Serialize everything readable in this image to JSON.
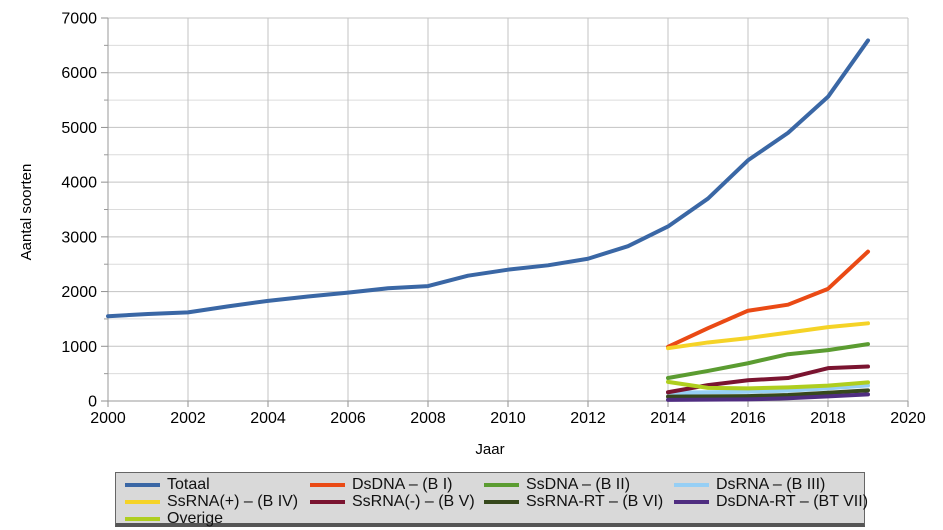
{
  "chart_data": {
    "type": "line",
    "title": "",
    "xlabel": "Jaar",
    "ylabel": "Aantal soorten",
    "xlim": [
      2000,
      2020
    ],
    "ylim": [
      0,
      7000
    ],
    "x_ticks": [
      2000,
      2002,
      2004,
      2006,
      2008,
      2010,
      2012,
      2014,
      2016,
      2018,
      2020
    ],
    "y_ticks": [
      0,
      1000,
      2000,
      3000,
      4000,
      5000,
      6000,
      7000
    ],
    "y_minor_step": 500,
    "grid": "on",
    "legend": {
      "position": "bottom",
      "columns": 4,
      "background": "#d9d9d9"
    },
    "series": [
      {
        "name": "Totaal",
        "color": "#3A67A5",
        "x": [
          2000,
          2001,
          2002,
          2003,
          2004,
          2005,
          2006,
          2007,
          2008,
          2009,
          2010,
          2011,
          2012,
          2013,
          2014,
          2015,
          2016,
          2017,
          2018,
          2019
        ],
        "values": [
          1550,
          1590,
          1620,
          1730,
          1830,
          1910,
          1980,
          2060,
          2100,
          2290,
          2400,
          2480,
          2600,
          2830,
          3190,
          3700,
          4400,
          4900,
          5560,
          6590
        ]
      },
      {
        "name": "DsDNA – (B I)",
        "color": "#EA4A15",
        "x": [
          2014,
          2015,
          2016,
          2017,
          2018,
          2019
        ],
        "values": [
          990,
          1330,
          1650,
          1760,
          2050,
          2730
        ]
      },
      {
        "name": "SsDNA – (B II)",
        "color": "#5B9C31",
        "x": [
          2014,
          2015,
          2016,
          2017,
          2018,
          2019
        ],
        "values": [
          420,
          550,
          690,
          855,
          930,
          1040
        ]
      },
      {
        "name": "DsRNA – (B III)",
        "color": "#96CFF5",
        "x": [
          2014,
          2015,
          2016,
          2017,
          2018,
          2019
        ],
        "values": [
          150,
          160,
          170,
          190,
          230,
          285
        ]
      },
      {
        "name": "SsRNA(+) – (B IV)",
        "color": "#F5D327",
        "x": [
          2014,
          2015,
          2016,
          2017,
          2018,
          2019
        ],
        "values": [
          965,
          1070,
          1150,
          1250,
          1350,
          1420
        ]
      },
      {
        "name": "SsRNA(-) – (B V)",
        "color": "#7A1430",
        "x": [
          2014,
          2015,
          2016,
          2017,
          2018,
          2019
        ],
        "values": [
          160,
          290,
          380,
          420,
          600,
          630
        ]
      },
      {
        "name": "SsRNA-RT – (B VI)",
        "color": "#36481C",
        "x": [
          2014,
          2015,
          2016,
          2017,
          2018,
          2019
        ],
        "values": [
          80,
          85,
          90,
          110,
          150,
          195
        ]
      },
      {
        "name": "DsDNA-RT – (BT VII)",
        "color": "#4F2D80",
        "x": [
          2014,
          2015,
          2016,
          2017,
          2018,
          2019
        ],
        "values": [
          20,
          25,
          30,
          50,
          85,
          120
        ]
      },
      {
        "name": "Overige",
        "color": "#AFCE1F",
        "x": [
          2014,
          2015,
          2016,
          2017,
          2018,
          2019
        ],
        "values": [
          350,
          240,
          230,
          250,
          280,
          340
        ]
      }
    ]
  }
}
